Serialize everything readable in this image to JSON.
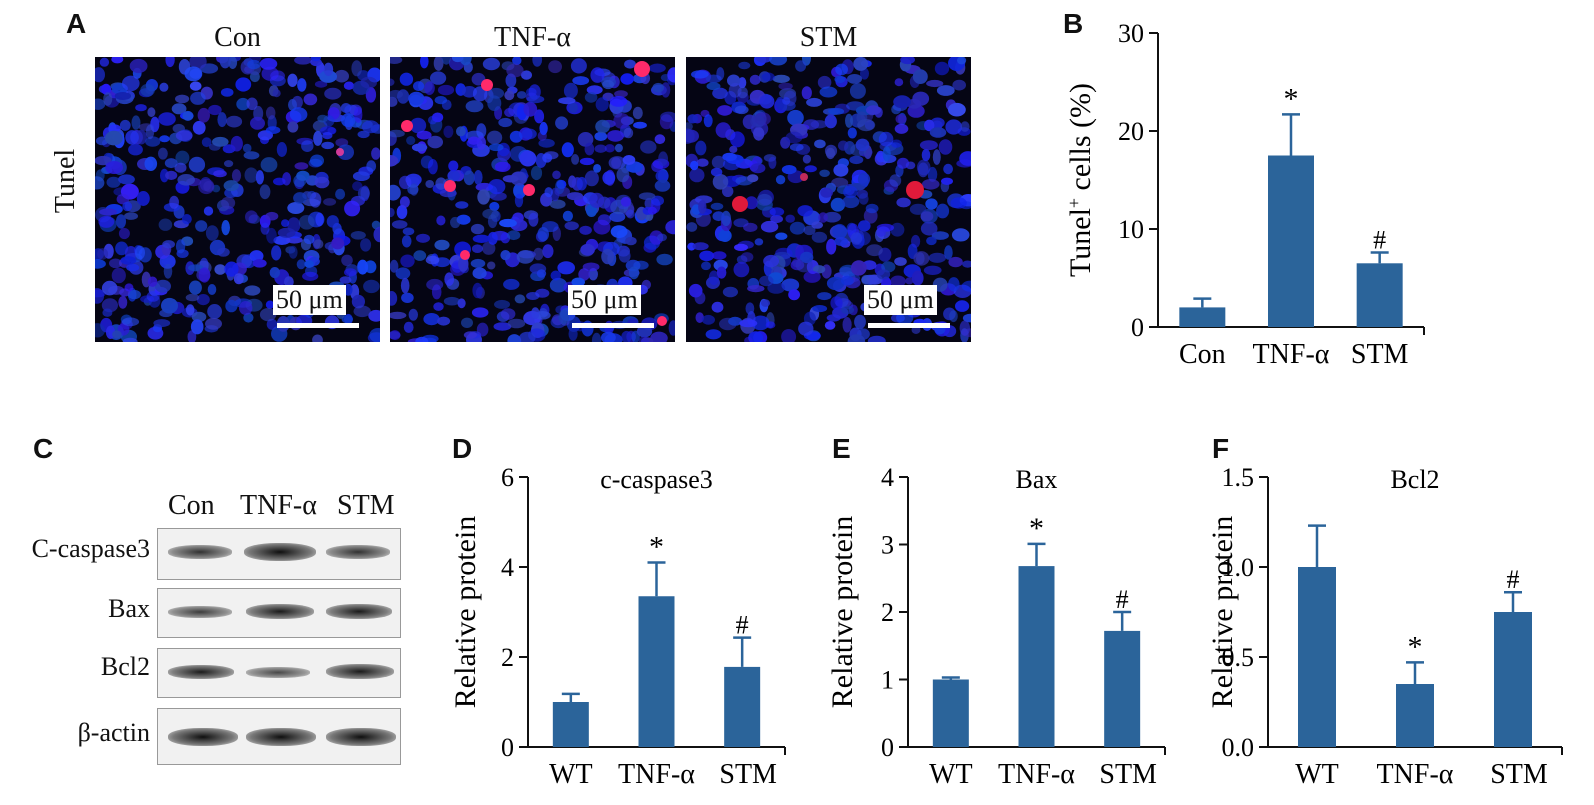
{
  "panels": {
    "a": "A",
    "b": "B",
    "c": "C",
    "d": "D",
    "e": "E",
    "f": "F"
  },
  "tunel": {
    "row_label": "Tunel",
    "images": [
      {
        "title": "Con",
        "scale": "50 μm"
      },
      {
        "title": "TNF-α",
        "scale": "50 μm"
      },
      {
        "title": "STM",
        "scale": "50 μm"
      }
    ]
  },
  "western": {
    "columns": [
      "Con",
      "TNF-α",
      "STM"
    ],
    "rows": [
      "C-caspase3",
      "Bax",
      "Bcl2",
      "β-actin"
    ]
  },
  "colors": {
    "bar": "#2b649a",
    "nuclei": "#1a2adb",
    "tunel_positive": "#ff2a6a"
  },
  "chart_data": [
    {
      "id": "B",
      "type": "bar",
      "title": "",
      "ylabel": "Tunel⁺ cells (%)",
      "ylim": [
        0,
        30
      ],
      "yticks": [
        0,
        10,
        20,
        30
      ],
      "categories": [
        "Con",
        "TNF-α",
        "STM"
      ],
      "values": [
        2.0,
        17.5,
        6.5
      ],
      "errors": [
        0.9,
        4.2,
        1.1
      ],
      "annotations": [
        "",
        "*",
        "#"
      ]
    },
    {
      "id": "D",
      "type": "bar",
      "title": "c-caspase3",
      "ylabel": "Relative protein",
      "ylim": [
        0,
        6
      ],
      "yticks": [
        0,
        2,
        4,
        6
      ],
      "categories": [
        "WT",
        "TNF-α",
        "STM"
      ],
      "values": [
        1.0,
        3.35,
        1.78
      ],
      "errors": [
        0.18,
        0.75,
        0.65
      ],
      "annotations": [
        "",
        "*",
        "#"
      ]
    },
    {
      "id": "E",
      "type": "bar",
      "title": "Bax",
      "ylabel": "Relative protein",
      "ylim": [
        0,
        4
      ],
      "yticks": [
        0,
        1,
        2,
        3,
        4
      ],
      "categories": [
        "WT",
        "TNF-α",
        "STM"
      ],
      "values": [
        1.0,
        2.68,
        1.72
      ],
      "errors": [
        0.03,
        0.33,
        0.28
      ],
      "annotations": [
        "",
        "*",
        "#"
      ]
    },
    {
      "id": "F",
      "type": "bar",
      "title": "Bcl2",
      "ylabel": "Relative protein",
      "ylim": [
        0,
        1.5
      ],
      "yticks": [
        "0.0",
        "0.5",
        "1.0",
        "1.5"
      ],
      "categories": [
        "WT",
        "TNF-α",
        "STM"
      ],
      "values": [
        1.0,
        0.35,
        0.75
      ],
      "errors": [
        0.23,
        0.12,
        0.11
      ],
      "annotations": [
        "",
        "*",
        "#"
      ]
    }
  ]
}
